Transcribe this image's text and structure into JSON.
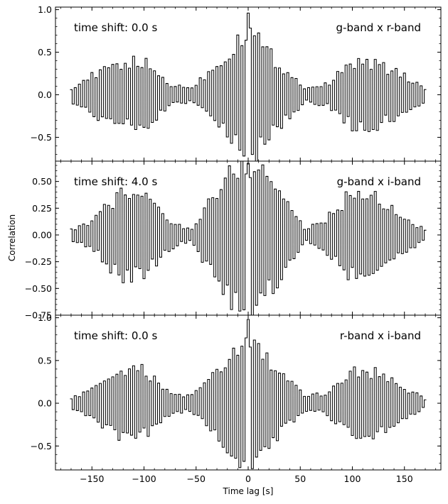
{
  "figure": {
    "xlabel": "Time lag [s]",
    "ylabel": "Correlation"
  },
  "chart_data": [
    {
      "type": "line",
      "step": true,
      "left_annotation": "time shift: 0.0 s",
      "right_annotation": "g-band x r-band",
      "xlim": [
        -185,
        185
      ],
      "ylim": [
        -0.78,
        1.03
      ],
      "xticks": [
        -150,
        -100,
        -50,
        0,
        50,
        100,
        150
      ],
      "xtick_labels": [
        "",
        "",
        "",
        "",
        "",
        "",
        ""
      ],
      "yticks": [
        -0.5,
        0.0,
        0.5,
        1.0
      ],
      "ytick_labels": [
        "−0.5",
        "0.0",
        "0.5",
        "1.0"
      ],
      "x_range": [
        -170,
        170
      ],
      "x_step": 2,
      "peak_value": 0.96,
      "trough_value": -0.72,
      "series": [
        {
          "color": "#000000",
          "envelope": [
            [
              -170,
              0.08
            ],
            [
              -150,
              0.22
            ],
            [
              -120,
              0.38
            ],
            [
              -100,
              0.38
            ],
            [
              -75,
              0.12
            ],
            [
              -55,
              0.08
            ],
            [
              -35,
              0.3
            ],
            [
              -15,
              0.55
            ],
            [
              0,
              0.85
            ],
            [
              15,
              0.55
            ],
            [
              35,
              0.3
            ],
            [
              55,
              0.08
            ],
            [
              75,
              0.12
            ],
            [
              100,
              0.38
            ],
            [
              120,
              0.38
            ],
            [
              150,
              0.22
            ],
            [
              170,
              0.08
            ]
          ]
        }
      ]
    },
    {
      "type": "line",
      "step": true,
      "left_annotation": "time shift: 4.0 s",
      "right_annotation": "g-band x i-band",
      "xlim": [
        -185,
        185
      ],
      "ylim": [
        -0.75,
        0.69
      ],
      "xticks": [
        -150,
        -100,
        -50,
        0,
        50,
        100,
        150
      ],
      "xtick_labels": [
        "",
        "",
        "",
        "",
        "",
        "",
        ""
      ],
      "yticks": [
        -0.75,
        -0.5,
        -0.25,
        0.0,
        0.25,
        0.5
      ],
      "ytick_labels": [
        "−0.75",
        "−0.50",
        "−0.25",
        "0.00",
        "0.25",
        "0.50"
      ],
      "x_range": [
        -170,
        170
      ],
      "x_step": 2,
      "peak_value": 0.67,
      "trough_value": -0.7,
      "series": [
        {
          "color": "#000000",
          "envelope": [
            [
              -170,
              0.05
            ],
            [
              -150,
              0.12
            ],
            [
              -125,
              0.38
            ],
            [
              -100,
              0.38
            ],
            [
              -75,
              0.12
            ],
            [
              -55,
              0.05
            ],
            [
              -35,
              0.35
            ],
            [
              -15,
              0.6
            ],
            [
              0,
              0.68
            ],
            [
              15,
              0.6
            ],
            [
              35,
              0.35
            ],
            [
              55,
              0.05
            ],
            [
              75,
              0.15
            ],
            [
              100,
              0.4
            ],
            [
              120,
              0.38
            ],
            [
              150,
              0.15
            ],
            [
              170,
              0.05
            ]
          ]
        }
      ]
    },
    {
      "type": "line",
      "step": true,
      "left_annotation": "time shift: 0.0 s",
      "right_annotation": "r-band x i-band",
      "xlim": [
        -185,
        185
      ],
      "ylim": [
        -0.78,
        1.03
      ],
      "xticks": [
        -150,
        -100,
        -50,
        0,
        50,
        100,
        150
      ],
      "xtick_labels": [
        "−150",
        "−100",
        "−50",
        "0",
        "50",
        "100",
        "150"
      ],
      "yticks": [
        -0.5,
        0.0,
        0.5,
        1.0
      ],
      "ytick_labels": [
        "−0.5",
        "0.0",
        "0.5",
        "1.0"
      ],
      "x_range": [
        -170,
        170
      ],
      "x_step": 2,
      "peak_value": 0.98,
      "trough_value": -0.68,
      "series": [
        {
          "color": "#000000",
          "envelope": [
            [
              -170,
              0.05
            ],
            [
              -150,
              0.18
            ],
            [
              -125,
              0.38
            ],
            [
              -100,
              0.38
            ],
            [
              -75,
              0.12
            ],
            [
              -55,
              0.08
            ],
            [
              -35,
              0.3
            ],
            [
              -15,
              0.55
            ],
            [
              0,
              0.8
            ],
            [
              15,
              0.55
            ],
            [
              35,
              0.3
            ],
            [
              55,
              0.08
            ],
            [
              75,
              0.12
            ],
            [
              100,
              0.38
            ],
            [
              120,
              0.38
            ],
            [
              150,
              0.18
            ],
            [
              170,
              0.05
            ]
          ]
        }
      ]
    }
  ]
}
